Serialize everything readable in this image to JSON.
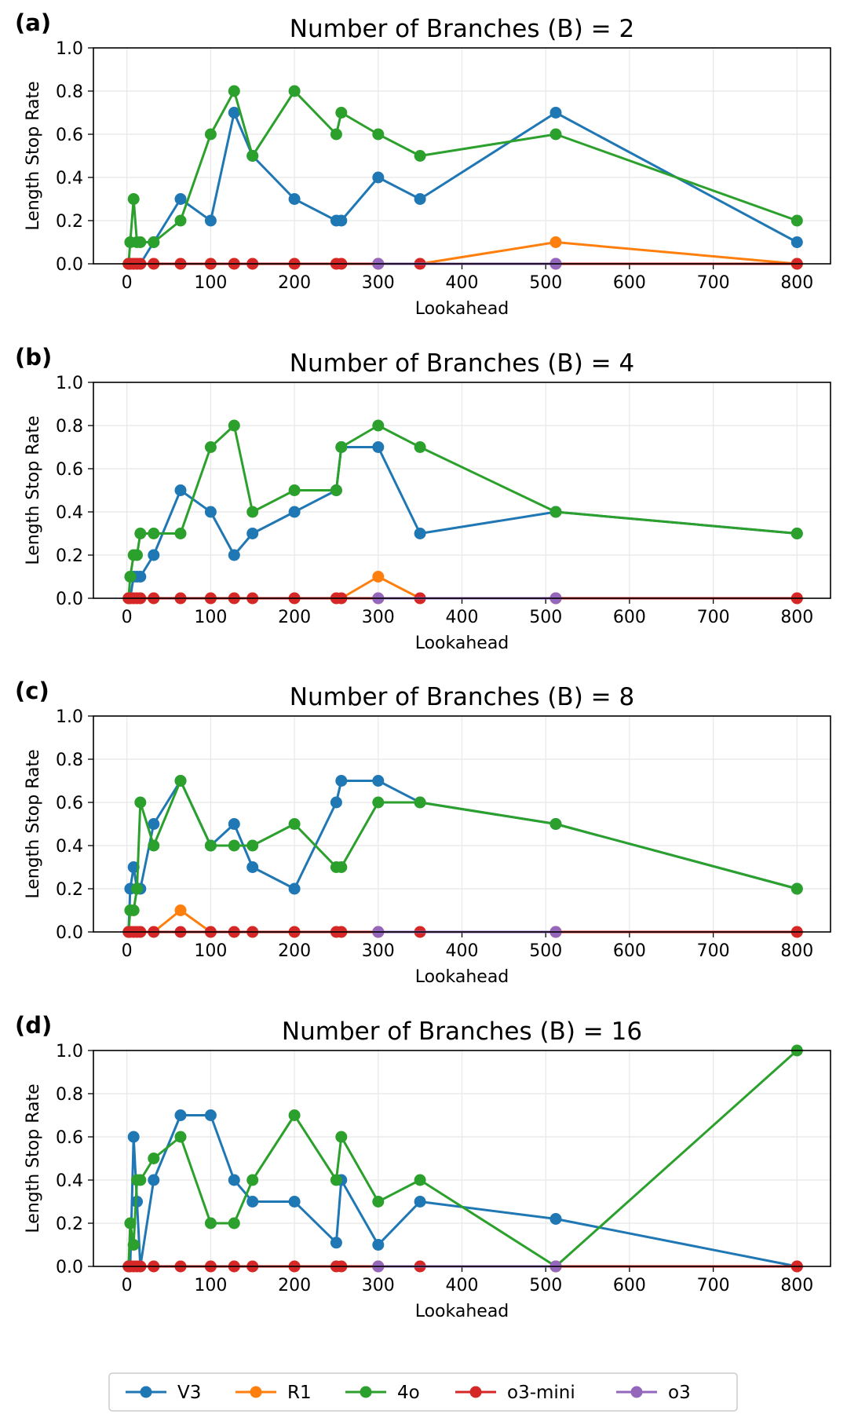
{
  "chart_data": [
    {
      "type": "line",
      "panel_label": "(a)",
      "title": "Number of Branches (B) = 2",
      "xlabel": "Lookahead",
      "ylabel": "Length Stop Rate",
      "xlim": [
        -40,
        840
      ],
      "ylim": [
        0,
        1.0
      ],
      "xticks": [
        "0",
        "100",
        "200",
        "300",
        "400",
        "500",
        "600",
        "700",
        "800"
      ],
      "yticks": [
        "0.0",
        "0.2",
        "0.4",
        "0.6",
        "0.8",
        "1.0"
      ],
      "grid": true,
      "x": [
        2,
        4,
        8,
        12,
        16,
        32,
        64,
        100,
        128,
        150,
        200,
        250,
        256,
        300,
        350,
        512,
        800
      ],
      "series": [
        {
          "name": "V3",
          "color": "#1f77b4",
          "values": [
            0,
            0,
            0,
            0,
            0,
            0.1,
            0.3,
            0.2,
            0.7,
            0.5,
            0.3,
            0.2,
            0.2,
            0.4,
            0.3,
            0.7,
            0.1
          ]
        },
        {
          "name": "R1",
          "color": "#ff7f0e",
          "values": [
            0,
            0,
            0,
            0,
            0,
            0,
            0,
            0,
            0,
            0,
            0,
            0,
            0,
            0,
            0,
            0.1,
            0
          ]
        },
        {
          "name": "4o",
          "color": "#2ca02c",
          "values": [
            0,
            0.1,
            0.3,
            0.1,
            0.1,
            0.1,
            0.2,
            0.6,
            0.8,
            0.5,
            0.8,
            0.6,
            0.7,
            0.6,
            0.5,
            0.6,
            0.2
          ]
        },
        {
          "name": "o3-mini",
          "color": "#d62728",
          "values": [
            0,
            0,
            0,
            0,
            0,
            0,
            0,
            0,
            0,
            0,
            0,
            0,
            0,
            0,
            0,
            0,
            0
          ]
        },
        {
          "name": "o3",
          "color": "#9467bd",
          "x": [
            300,
            512
          ],
          "values": [
            0,
            0
          ]
        }
      ]
    },
    {
      "type": "line",
      "panel_label": "(b)",
      "title": "Number of Branches (B) = 4",
      "xlabel": "Lookahead",
      "ylabel": "Length Stop Rate",
      "xlim": [
        -40,
        840
      ],
      "ylim": [
        0,
        1.0
      ],
      "xticks": [
        "0",
        "100",
        "200",
        "300",
        "400",
        "500",
        "600",
        "700",
        "800"
      ],
      "yticks": [
        "0.0",
        "0.2",
        "0.4",
        "0.6",
        "0.8",
        "1.0"
      ],
      "grid": true,
      "x": [
        2,
        4,
        8,
        12,
        16,
        32,
        64,
        100,
        128,
        150,
        200,
        250,
        256,
        300,
        350,
        512,
        800
      ],
      "series": [
        {
          "name": "V3",
          "color": "#1f77b4",
          "values": [
            0,
            0,
            0.1,
            0.1,
            0.1,
            0.2,
            0.5,
            0.4,
            0.2,
            0.3,
            0.4,
            0.5,
            0.7,
            0.7,
            0.3,
            0.4,
            0.3
          ]
        },
        {
          "name": "R1",
          "color": "#ff7f0e",
          "values": [
            0,
            0,
            0,
            0,
            0,
            0,
            0,
            0,
            0,
            0,
            0,
            0,
            0,
            0.1,
            0,
            0,
            0
          ]
        },
        {
          "name": "4o",
          "color": "#2ca02c",
          "values": [
            0,
            0.1,
            0.2,
            0.2,
            0.3,
            0.3,
            0.3,
            0.7,
            0.8,
            0.4,
            0.5,
            0.5,
            0.7,
            0.8,
            0.7,
            0.4,
            0.3
          ]
        },
        {
          "name": "o3-mini",
          "color": "#d62728",
          "values": [
            0,
            0,
            0,
            0,
            0,
            0,
            0,
            0,
            0,
            0,
            0,
            0,
            0,
            0,
            0,
            0,
            0
          ]
        },
        {
          "name": "o3",
          "color": "#9467bd",
          "x": [
            300,
            512
          ],
          "values": [
            0,
            0
          ]
        }
      ]
    },
    {
      "type": "line",
      "panel_label": "(c)",
      "title": "Number of Branches (B) = 8",
      "xlabel": "Lookahead",
      "ylabel": "Length Stop Rate",
      "xlim": [
        -40,
        840
      ],
      "ylim": [
        0,
        1.0
      ],
      "xticks": [
        "0",
        "100",
        "200",
        "300",
        "400",
        "500",
        "600",
        "700",
        "800"
      ],
      "yticks": [
        "0.0",
        "0.2",
        "0.4",
        "0.6",
        "0.8",
        "1.0"
      ],
      "grid": true,
      "x": [
        2,
        4,
        8,
        12,
        16,
        32,
        64,
        100,
        128,
        150,
        200,
        250,
        256,
        300,
        350,
        512,
        800
      ],
      "series": [
        {
          "name": "V3",
          "color": "#1f77b4",
          "values": [
            0,
            0.2,
            0.3,
            0.2,
            0.2,
            0.5,
            0.7,
            0.4,
            0.5,
            0.3,
            0.2,
            0.6,
            0.7,
            0.7,
            0.6,
            0.5,
            0.2
          ]
        },
        {
          "name": "R1",
          "color": "#ff7f0e",
          "values": [
            0,
            0,
            0,
            0,
            0,
            0,
            0.1,
            0,
            0,
            0,
            0,
            0,
            0,
            0,
            0,
            0,
            0
          ]
        },
        {
          "name": "4o",
          "color": "#2ca02c",
          "values": [
            0,
            0.1,
            0.1,
            0.2,
            0.6,
            0.4,
            0.7,
            0.4,
            0.4,
            0.4,
            0.5,
            0.3,
            0.3,
            0.6,
            0.6,
            0.5,
            0.2
          ]
        },
        {
          "name": "o3-mini",
          "color": "#d62728",
          "values": [
            0,
            0,
            0,
            0,
            0,
            0,
            0,
            0,
            0,
            0,
            0,
            0,
            0,
            0,
            0,
            0,
            0
          ]
        },
        {
          "name": "o3",
          "color": "#9467bd",
          "x": [
            300,
            512
          ],
          "values": [
            0,
            0
          ]
        }
      ]
    },
    {
      "type": "line",
      "panel_label": "(d)",
      "title": "Number of Branches (B) = 16",
      "xlabel": "Lookahead",
      "ylabel": "Length Stop Rate",
      "xlim": [
        -40,
        840
      ],
      "ylim": [
        0,
        1.0
      ],
      "xticks": [
        "0",
        "100",
        "200",
        "300",
        "400",
        "500",
        "600",
        "700",
        "800"
      ],
      "yticks": [
        "0.0",
        "0.2",
        "0.4",
        "0.6",
        "0.8",
        "1.0"
      ],
      "grid": true,
      "x": [
        2,
        4,
        8,
        12,
        16,
        32,
        64,
        100,
        128,
        150,
        200,
        250,
        256,
        300,
        350,
        512,
        800
      ],
      "series": [
        {
          "name": "V3",
          "color": "#1f77b4",
          "values": [
            0,
            0,
            0.6,
            0.3,
            0,
            0.4,
            0.7,
            0.7,
            0.4,
            0.3,
            0.3,
            0.11,
            0.4,
            0.1,
            0.3,
            0.22,
            0
          ]
        },
        {
          "name": "R1",
          "color": "#ff7f0e",
          "values": [
            0,
            0,
            0,
            0,
            0,
            0,
            0,
            0,
            0,
            0,
            0,
            0,
            0,
            0,
            0,
            0,
            0
          ]
        },
        {
          "name": "4o",
          "color": "#2ca02c",
          "values": [
            0,
            0.2,
            0.1,
            0.4,
            0.4,
            0.5,
            0.6,
            0.2,
            0.2,
            0.4,
            0.7,
            0.4,
            0.6,
            0.3,
            0.4,
            0,
            1.0
          ]
        },
        {
          "name": "o3-mini",
          "color": "#d62728",
          "values": [
            0,
            0,
            0,
            0,
            0,
            0,
            0,
            0,
            0,
            0,
            0,
            0,
            0,
            0,
            0,
            0,
            0
          ]
        },
        {
          "name": "o3",
          "color": "#9467bd",
          "x": [
            300,
            512
          ],
          "values": [
            0,
            0
          ]
        }
      ]
    }
  ],
  "legend": {
    "position": "bottom-center",
    "entries": [
      {
        "name": "V3",
        "color": "#1f77b4"
      },
      {
        "name": "R1",
        "color": "#ff7f0e"
      },
      {
        "name": "4o",
        "color": "#2ca02c"
      },
      {
        "name": "o3-mini",
        "color": "#d62728"
      },
      {
        "name": "o3",
        "color": "#9467bd"
      }
    ]
  }
}
